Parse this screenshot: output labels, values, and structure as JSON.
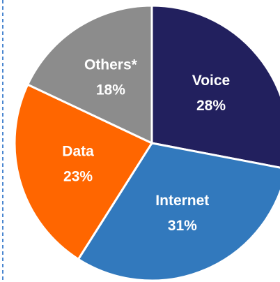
{
  "chart_data": {
    "type": "pie",
    "categories": [
      "Voice",
      "Internet",
      "Data",
      "Others*"
    ],
    "values": [
      28,
      31,
      23,
      18
    ],
    "value_labels": [
      "28%",
      "31%",
      "23%",
      "18%"
    ],
    "colors": [
      "#22205e",
      "#3279bd",
      "#ff6600",
      "#8c8c8c"
    ]
  }
}
